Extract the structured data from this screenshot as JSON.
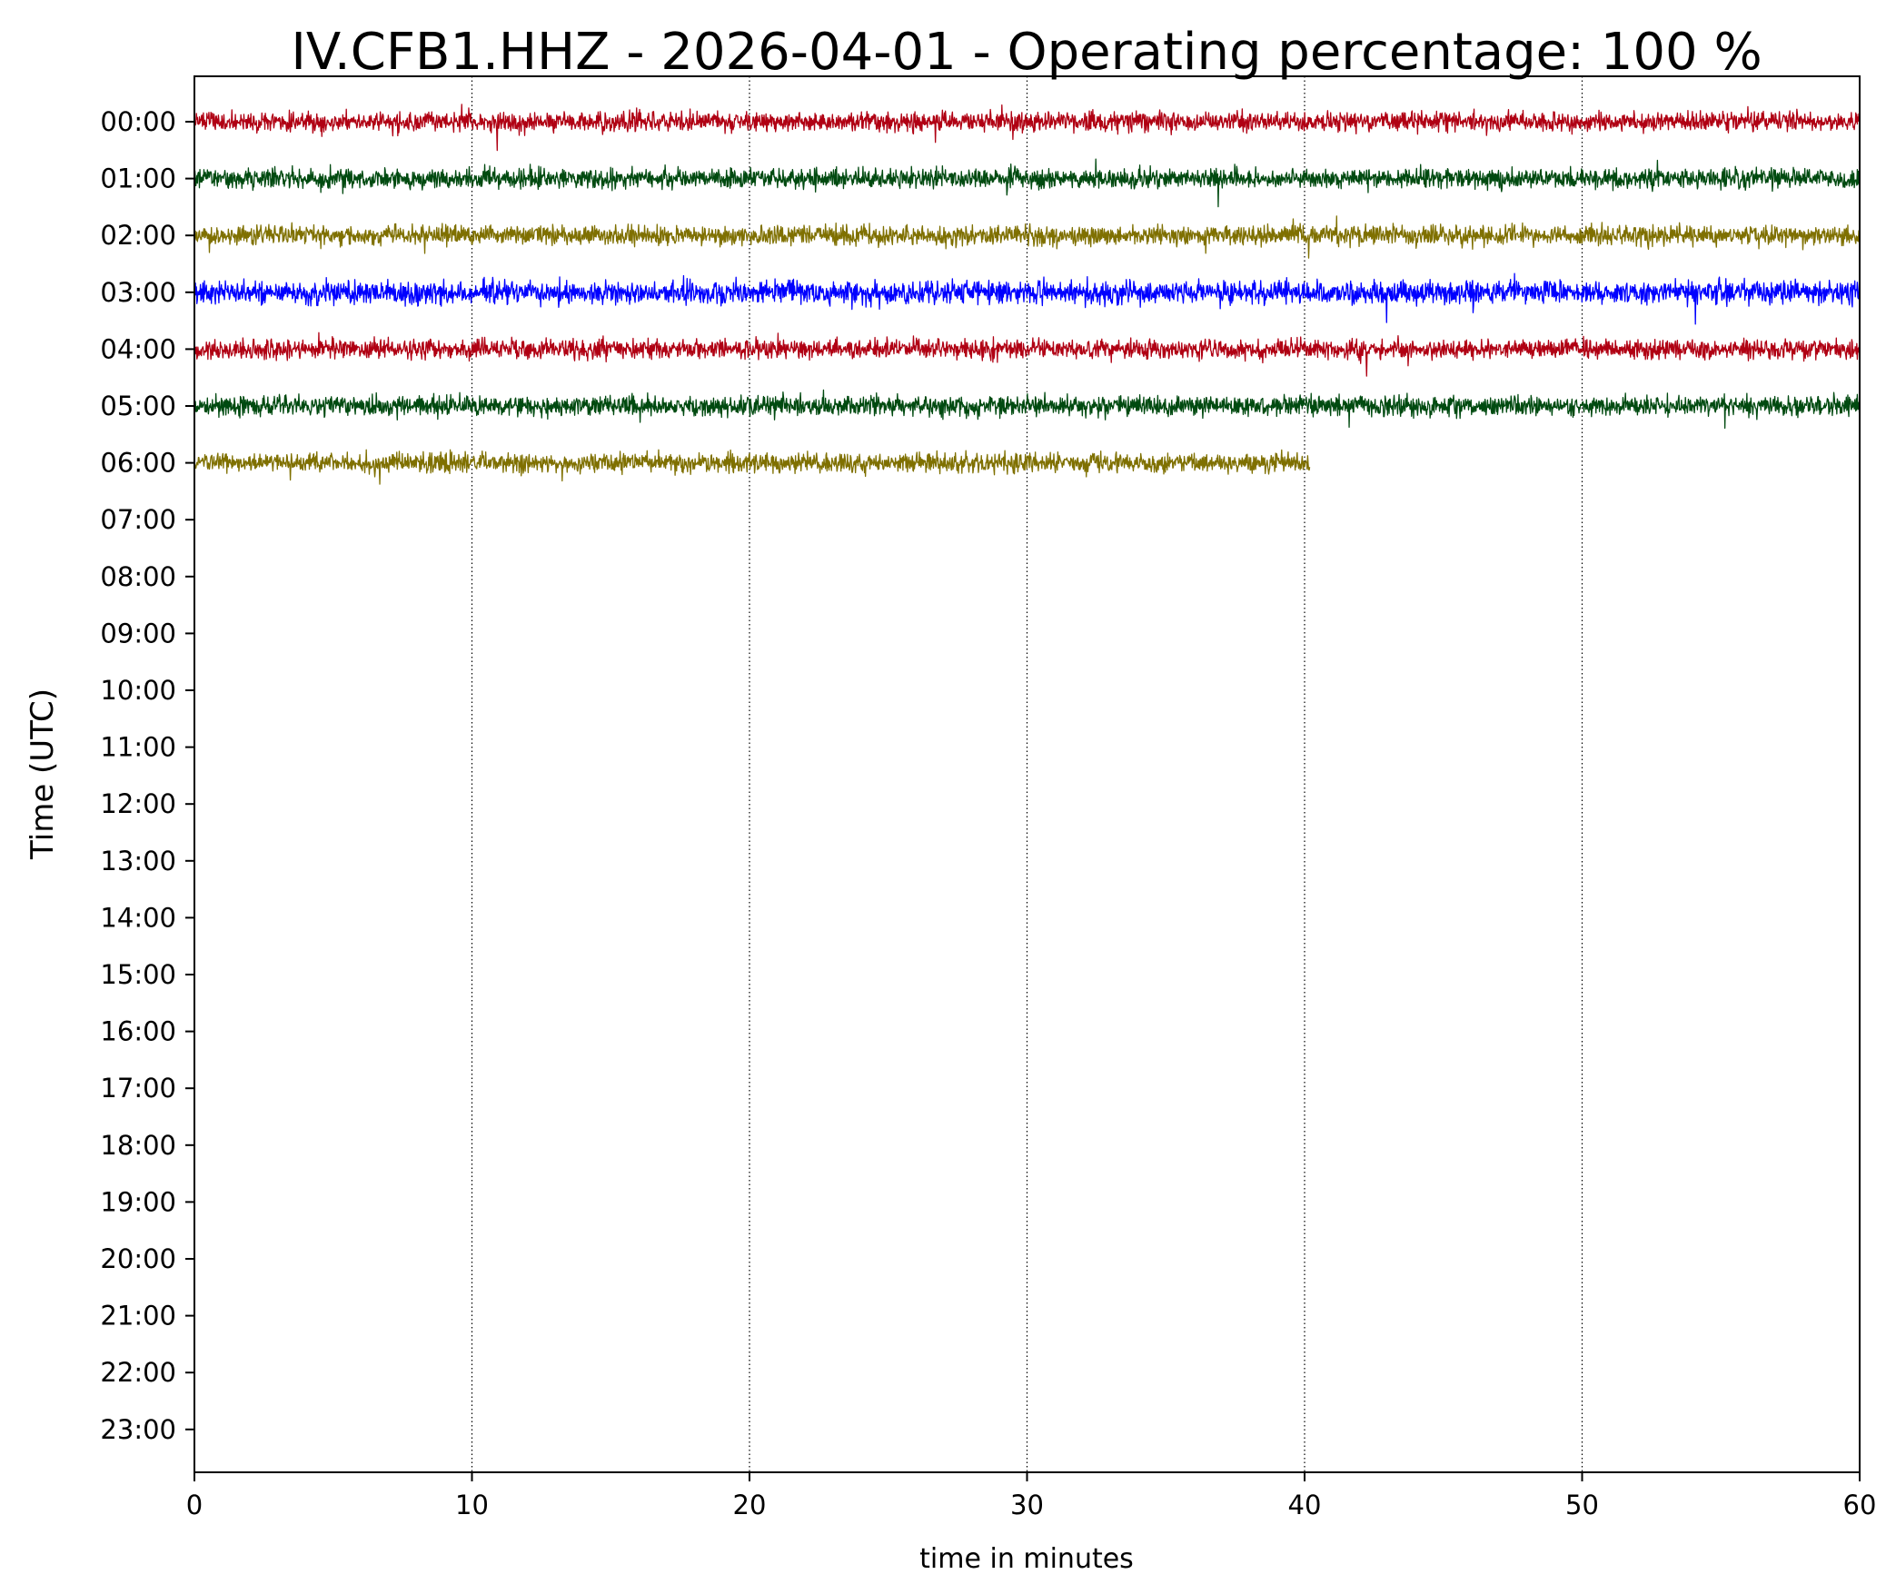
{
  "chart_data": {
    "type": "line",
    "title": "IV.CFB1.HHZ - 2026-04-01 - Operating percentage: 100 %",
    "xlabel": "time in minutes",
    "ylabel": "Time (UTC)",
    "xlim": [
      0,
      60
    ],
    "x_ticks": [
      0,
      10,
      20,
      30,
      40,
      50,
      60
    ],
    "y_ticks": [
      "00:00",
      "01:00",
      "02:00",
      "03:00",
      "04:00",
      "05:00",
      "06:00",
      "07:00",
      "08:00",
      "09:00",
      "10:00",
      "11:00",
      "12:00",
      "13:00",
      "14:00",
      "15:00",
      "16:00",
      "17:00",
      "18:00",
      "19:00",
      "20:00",
      "21:00",
      "22:00",
      "23:00"
    ],
    "grid": "vertical dotted",
    "legend": "none",
    "colors": [
      "#b00013",
      "#004a10",
      "#7f7000",
      "#0000ff"
    ],
    "series": [
      {
        "hour": "00:00",
        "color": "#b00013",
        "x_start": 0,
        "x_end": 60
      },
      {
        "hour": "01:00",
        "color": "#004a10",
        "x_start": 0,
        "x_end": 60
      },
      {
        "hour": "02:00",
        "color": "#7f7000",
        "x_start": 0,
        "x_end": 60
      },
      {
        "hour": "03:00",
        "color": "#0000ff",
        "x_start": 0,
        "x_end": 60
      },
      {
        "hour": "04:00",
        "color": "#b00013",
        "x_start": 0,
        "x_end": 60
      },
      {
        "hour": "05:00",
        "color": "#004a10",
        "x_start": 0,
        "x_end": 60
      },
      {
        "hour": "06:00",
        "color": "#7f7000",
        "x_start": 0,
        "x_end": 40.2
      }
    ]
  }
}
